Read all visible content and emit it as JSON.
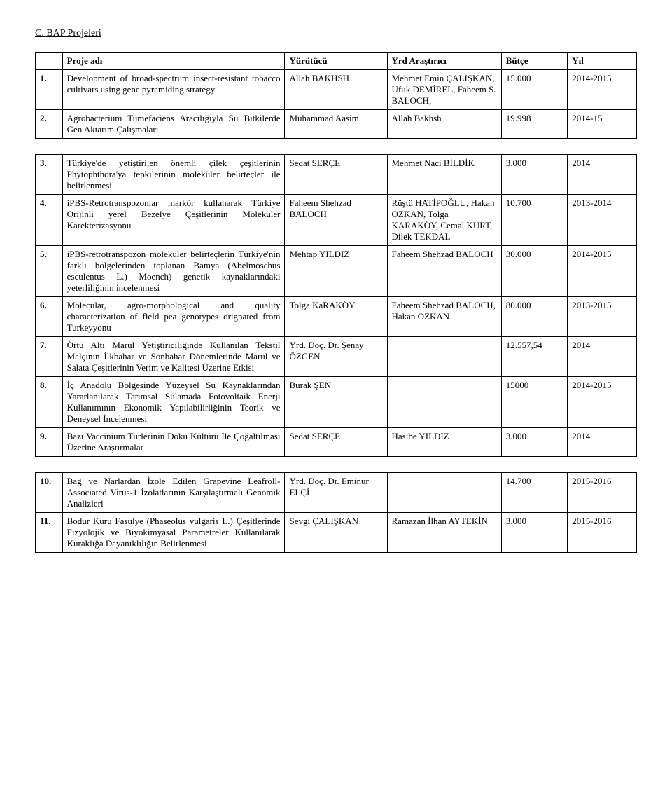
{
  "section_title": "C. BAP Projeleri",
  "headers": {
    "col1": "",
    "col2": "Proje adı",
    "col3": "Yürütücü",
    "col4": "Yrd Araştırıcı",
    "col5": "Bütçe",
    "col6": "Yıl"
  },
  "t1_rows": [
    {
      "num": "1.",
      "name": "Development of broad-spectrum insect-resistant tobacco cultivars using gene pyramiding strategy",
      "exec": "Allah BAKHSH",
      "assist": "Mehmet Emin ÇALIŞKAN, Ufuk DEMİREL, Faheem S. BALOCH,",
      "budget": "15.000",
      "year": "2014-2015"
    },
    {
      "num": "2.",
      "name": "Agrobacterium Tumefaciens Aracılığıyla Su Bitkilerde Gen Aktarım Çalışmaları",
      "exec": "Muhammad Aasim",
      "assist": "Allah Bakhsh",
      "budget": "19.998",
      "year": "2014-15"
    }
  ],
  "t2_rows": [
    {
      "num": "3.",
      "name": "Türkiye'de yetiştirilen önemli çilek çeşitlerinin Phytophthora'ya tepkilerinin moleküler belirteçler ile belirlenmesi",
      "exec": "Sedat SERÇE",
      "assist": "Mehmet Naci BİLDİK",
      "budget": "3.000",
      "year": "2014"
    },
    {
      "num": "4.",
      "name": "iPBS-Retrotranspozonlar markör kullanarak Türkiye Orijinli yerel Bezelye Çeşitlerinin Moleküler Karekterizasyonu",
      "exec": "Faheem Shehzad BALOCH",
      "assist": "Rüştü HATİPOĞLU, Hakan OZKAN, Tolga KARAKÖY, Cemal KURT, Dilek TEKDAL",
      "budget": "10.700",
      "year": "2013-2014"
    },
    {
      "num": "5.",
      "name": "iPBS-retrotranspozon moleküler belirteçlerin Türkiye'nin farklı bölgelerinden toplanan Bamya (Abelmoschus esculentus L.) Moench) genetik kaynaklarındaki yeterliliğinin incelenmesi",
      "exec": "Mehtap YILDIZ",
      "assist": "Faheem Shehzad BALOCH",
      "budget": "30.000",
      "year": "2014-2015"
    },
    {
      "num": "6.",
      "name": "Molecular, agro-morphological and quality characterization of field pea genotypes orignated from Turkeyyonu",
      "exec": "Tolga KaRAKÖY",
      "assist": "Faheem Shehzad BALOCH, Hakan OZKAN",
      "budget": "80.000",
      "year": "2013-2015"
    },
    {
      "num": "7.",
      "name": "Örtü Altı Marul Yetiştiriciliğinde Kullanılan Tekstil Malçının İlkbahar ve Sonbahar Dönemlerinde Marul ve Salata Çeşitlerinin Verim ve Kalitesi Üzerine Etkisi",
      "exec": "Yrd. Doç. Dr. Şenay ÖZGEN",
      "assist": "",
      "budget": "12.557,54",
      "year": "2014"
    },
    {
      "num": "8.",
      "name": "İç Anadolu Bölgesinde Yüzeysel Su Kaynaklarından Yararlanılarak Tarımsal Sulamada Fotovoltaik Enerji Kullanımının Ekonomik Yapılabilirliğinin Teorik ve Deneysel İncelenmesi",
      "exec": "Burak ŞEN",
      "assist": "",
      "budget": "15000",
      "year": "2014-2015"
    },
    {
      "num": "9.",
      "name": "Bazı Vaccinium Türlerinin Doku Kültürü İle Çoğaltılması Üzerine Araştırmalar",
      "exec": "Sedat SERÇE",
      "assist": "Hasibe YILDIZ",
      "budget": "3.000",
      "year": "2014"
    }
  ],
  "t3_rows": [
    {
      "num": "10.",
      "name": "Bağ ve Narlardan İzole Edilen Grapevine Leafroll-Associated Virus-1 İzolatlarının Karşılaştırmalı Genomik Analizleri",
      "exec": "Yrd. Doç. Dr. Eminur ELÇİ",
      "assist": "",
      "budget": "14.700",
      "year": "2015-2016"
    },
    {
      "num": "11.",
      "name": "Bodur Kuru Fasulye (Phaseolus vulgaris L.) Çeşitlerinde Fizyolojik ve Biyokimyasal Parametreler Kullanılarak Kuraklığa Dayanıklılığın Belirlenmesi",
      "exec": "Sevgi ÇALIŞKAN",
      "assist": "Ramazan İlhan AYTEKİN",
      "budget": "3.000",
      "year": "2015-2016"
    }
  ]
}
